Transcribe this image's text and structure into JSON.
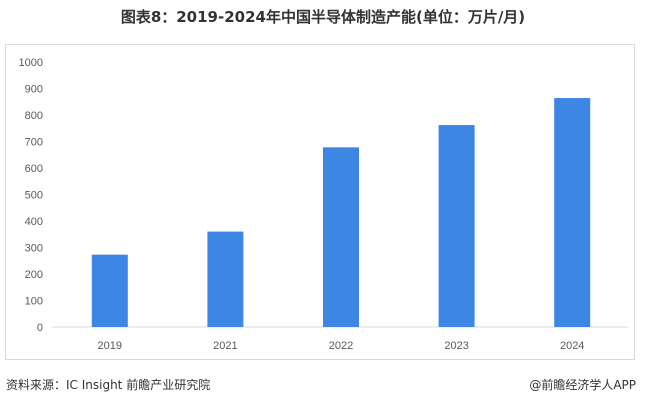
{
  "chart_data": {
    "type": "bar",
    "title": "图表8：2019-2024年中国半导体制造产能(单位：万片/月)",
    "categories": [
      "2019",
      "2021",
      "2022",
      "2023",
      "2024"
    ],
    "values": [
      273,
      360,
      678,
      762,
      864
    ],
    "ylim": [
      0,
      1000
    ],
    "yticks": [
      0,
      100,
      200,
      300,
      400,
      500,
      600,
      700,
      800,
      900,
      1000
    ],
    "grid": false,
    "legend": "none",
    "bar_color": "#3d86e3"
  },
  "footer": {
    "source": "资料来源：IC Insight 前瞻产业研究院",
    "brand": "@前瞻经济学人APP"
  }
}
